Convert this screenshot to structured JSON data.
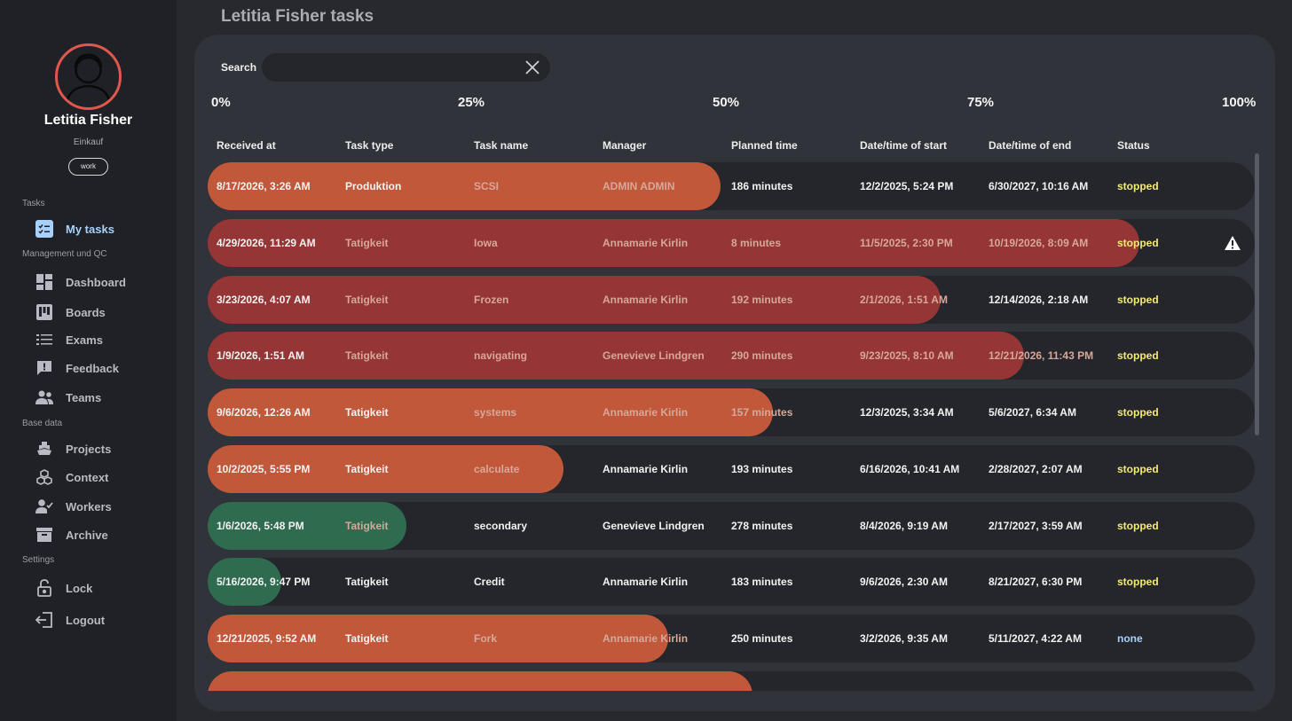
{
  "sidebar": {
    "user_name": "Letitia Fisher",
    "user_dept": "Einkauf",
    "user_tag": "work",
    "sections": {
      "tasks": "Tasks",
      "management": "Management und QC",
      "base": "Base data",
      "settings": "Settings"
    },
    "items": {
      "my_tasks": "My tasks",
      "dashboard": "Dashboard",
      "boards": "Boards",
      "exams": "Exams",
      "feedback": "Feedback",
      "teams": "Teams",
      "projects": "Projects",
      "context": "Context",
      "workers": "Workers",
      "archive": "Archive",
      "lock": "Lock",
      "logout": "Logout"
    }
  },
  "main": {
    "title": "Letitia Fisher tasks",
    "search_label": "Search",
    "search_value": "",
    "progress_scale": [
      "0%",
      "25%",
      "50%",
      "75%",
      "100%"
    ],
    "columns": [
      "Received at",
      "Task type",
      "Task name",
      "Manager",
      "Planned time",
      "Date/time of start",
      "Date/time of end",
      "Status"
    ]
  },
  "colors": {
    "orange": "#c1583a",
    "red": "#963535",
    "green": "#2e6b4f",
    "status_stopped": "#f4ea72",
    "status_none": "#a8d0f8",
    "avatar_ring": "#e0584d"
  },
  "rows": [
    {
      "received": "8/17/2026, 3:26 AM",
      "type": "Produktion",
      "name": "SCSI",
      "manager": "ADMIN ADMIN",
      "planned": "186 minutes",
      "start": "12/2/2025, 5:24 PM",
      "end": "6/30/2027, 10:16 AM",
      "status": "stopped",
      "progress": 0.49,
      "color": "orange",
      "warning": false
    },
    {
      "received": "4/29/2026, 11:29 AM",
      "type": "Tatigkeit",
      "name": "Iowa",
      "manager": "Annamarie Kirlin",
      "planned": "8 minutes",
      "start": "11/5/2025, 2:30 PM",
      "end": "10/19/2026, 8:09 AM",
      "status": "stopped",
      "progress": 0.89,
      "color": "red",
      "warning": true
    },
    {
      "received": "3/23/2026, 4:07 AM",
      "type": "Tatigkeit",
      "name": "Frozen",
      "manager": "Annamarie Kirlin",
      "planned": "192 minutes",
      "start": "2/1/2026, 1:51 AM",
      "end": "12/14/2026, 2:18 AM",
      "status": "stopped",
      "progress": 0.7,
      "color": "red",
      "warning": false
    },
    {
      "received": "1/9/2026, 1:51 AM",
      "type": "Tatigkeit",
      "name": "navigating",
      "manager": "Genevieve Lindgren",
      "planned": "290 minutes",
      "start": "9/23/2025, 8:10 AM",
      "end": "12/21/2026, 11:43 PM",
      "status": "stopped",
      "progress": 0.78,
      "color": "red",
      "warning": false
    },
    {
      "received": "9/6/2026, 12:26 AM",
      "type": "Tatigkeit",
      "name": "systems",
      "manager": "Annamarie Kirlin",
      "planned": "157 minutes",
      "start": "12/3/2025, 3:34 AM",
      "end": "5/6/2027, 6:34 AM",
      "status": "stopped",
      "progress": 0.54,
      "color": "orange",
      "warning": false
    },
    {
      "received": "10/2/2025, 5:55 PM",
      "type": "Tatigkeit",
      "name": "calculate",
      "manager": "Annamarie Kirlin",
      "planned": "193 minutes",
      "start": "6/16/2026, 10:41 AM",
      "end": "2/28/2027, 2:07 AM",
      "status": "stopped",
      "progress": 0.34,
      "color": "orange",
      "warning": false
    },
    {
      "received": "1/6/2026, 5:48 PM",
      "type": "Tatigkeit",
      "name": "secondary",
      "manager": "Genevieve Lindgren",
      "planned": "278 minutes",
      "start": "8/4/2026, 9:19 AM",
      "end": "2/17/2027, 3:59 AM",
      "status": "stopped",
      "progress": 0.19,
      "color": "green",
      "warning": false
    },
    {
      "received": "5/16/2026, 9:47 PM",
      "type": "Tatigkeit",
      "name": "Credit",
      "manager": "Annamarie Kirlin",
      "planned": "183 minutes",
      "start": "9/6/2026, 2:30 AM",
      "end": "8/21/2027, 6:30 PM",
      "status": "stopped",
      "progress": 0.07,
      "color": "green",
      "warning": false
    },
    {
      "received": "12/21/2025, 9:52 AM",
      "type": "Tatigkeit",
      "name": "Fork",
      "manager": "Annamarie Kirlin",
      "planned": "250 minutes",
      "start": "3/2/2026, 9:35 AM",
      "end": "5/11/2027, 4:22 AM",
      "status": "none",
      "progress": 0.44,
      "color": "orange",
      "warning": false
    },
    {
      "received": "",
      "type": "",
      "name": "",
      "manager": "",
      "planned": "",
      "start": "",
      "end": "",
      "status": "",
      "progress": 0.52,
      "color": "orange",
      "warning": false
    }
  ]
}
